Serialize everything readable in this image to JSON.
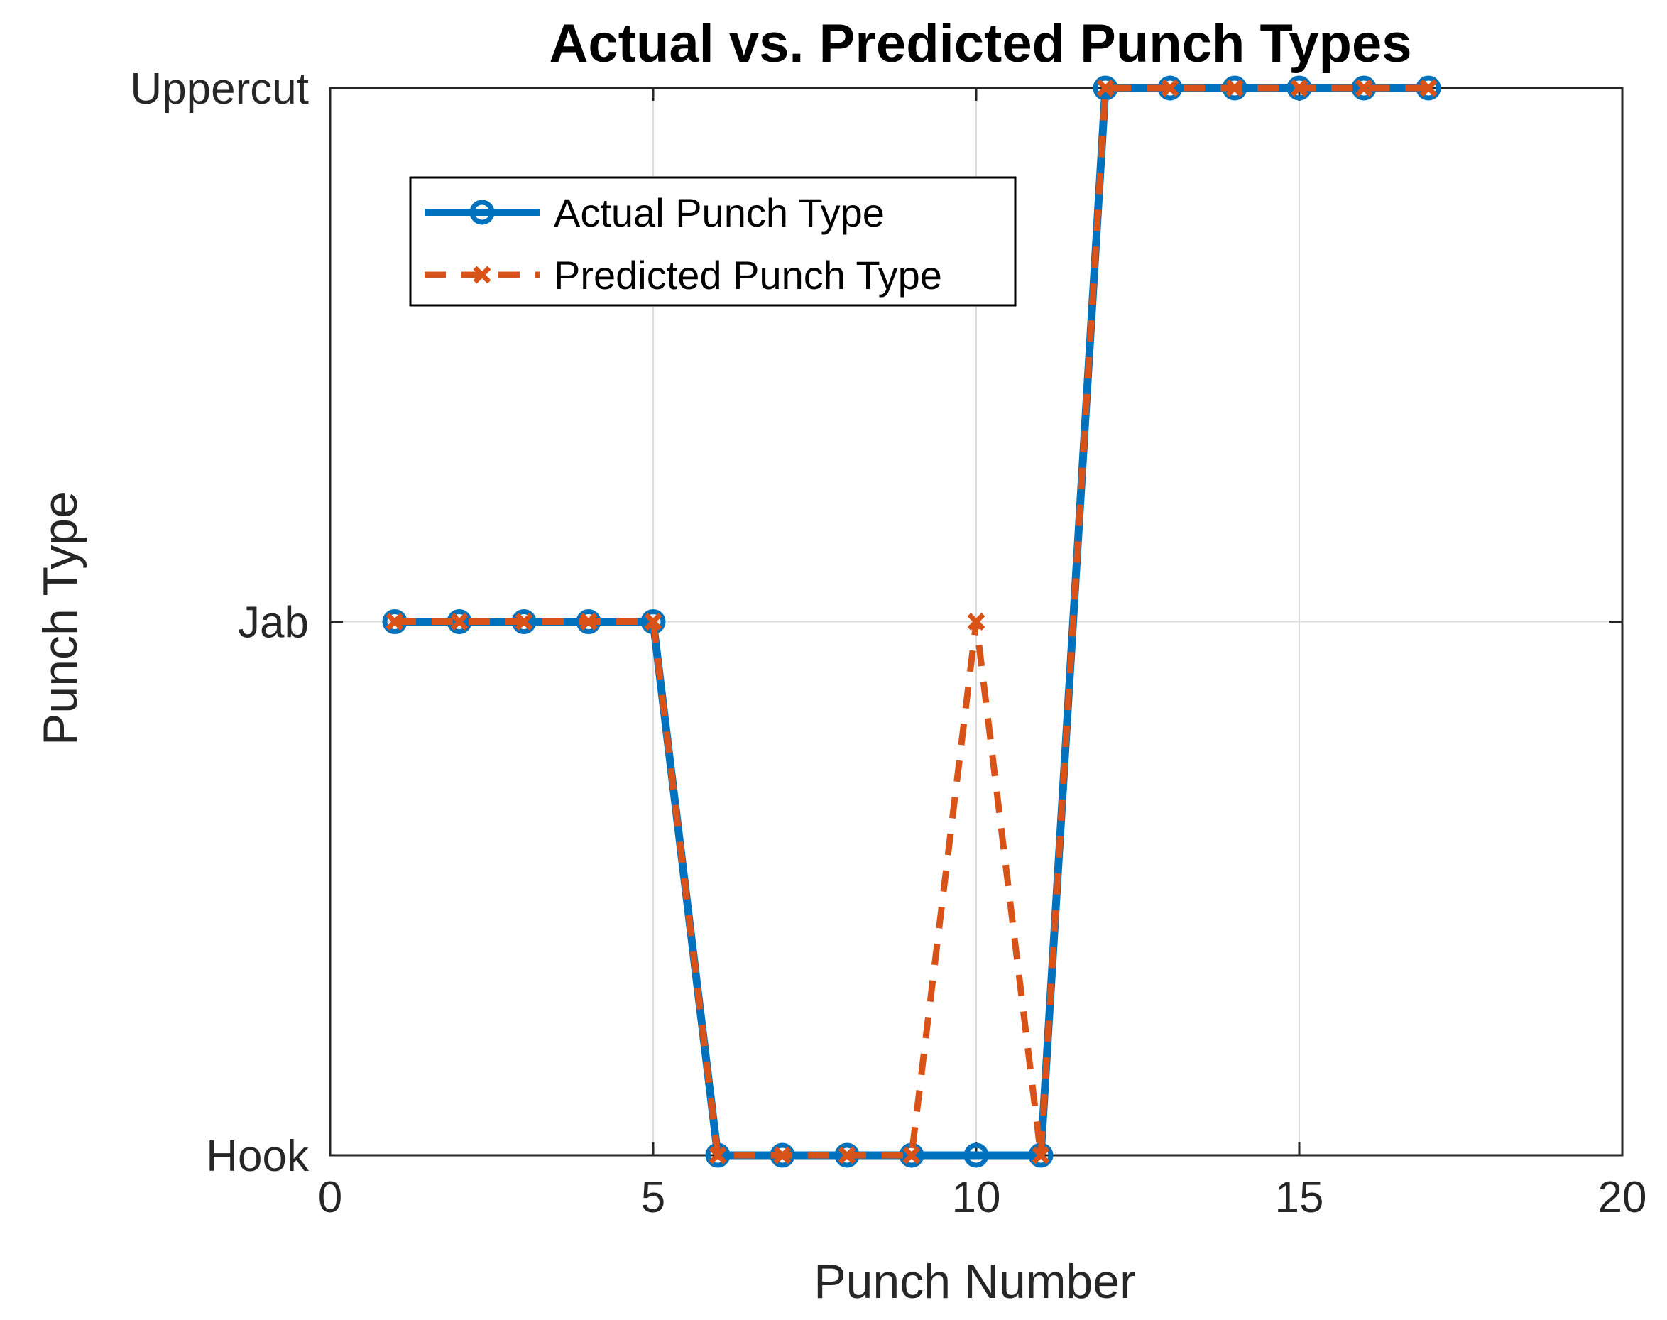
{
  "chart_data": {
    "type": "line",
    "title": "Actual vs. Predicted Punch Types",
    "xlabel": "Punch Number",
    "ylabel": "Punch Type",
    "xlim": [
      0,
      20
    ],
    "ylim": [
      1,
      3
    ],
    "xticks": [
      0,
      5,
      10,
      15,
      20
    ],
    "yticks": [
      {
        "value": 1,
        "label": "Hook"
      },
      {
        "value": 2,
        "label": "Jab"
      },
      {
        "value": 3,
        "label": "Uppercut"
      }
    ],
    "grid": true,
    "legend_position": "top-left",
    "x": [
      1,
      2,
      3,
      4,
      5,
      6,
      7,
      8,
      9,
      10,
      11,
      12,
      13,
      14,
      15,
      16,
      17
    ],
    "series": [
      {
        "name": "Actual Punch Type",
        "color": "#0072BD",
        "line_style": "solid",
        "marker": "circle",
        "values": [
          2,
          2,
          2,
          2,
          2,
          1,
          1,
          1,
          1,
          1,
          1,
          3,
          3,
          3,
          3,
          3,
          3
        ]
      },
      {
        "name": "Predicted Punch Type",
        "color": "#D95319",
        "line_style": "dashed",
        "marker": "x",
        "values": [
          2,
          2,
          2,
          2,
          2,
          1,
          1,
          1,
          1,
          2,
          1,
          3,
          3,
          3,
          3,
          3,
          3
        ]
      }
    ]
  }
}
